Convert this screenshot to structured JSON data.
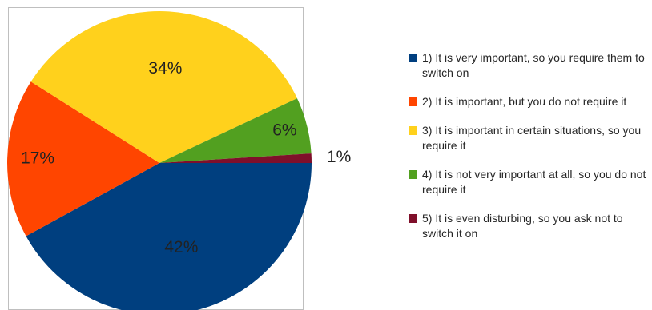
{
  "chart_data": {
    "type": "pie",
    "slices": [
      {
        "label": "1) It is very important, so you require them to switch on",
        "value": 42,
        "value_label": "42%",
        "color": "#003F7F"
      },
      {
        "label": "2) It is important, but you do not require it",
        "value": 17,
        "value_label": "17%",
        "color": "#FF4500"
      },
      {
        "label": "3) It is important in certain situations, so you require it",
        "value": 34,
        "value_label": "34%",
        "color": "#FFD11C"
      },
      {
        "label": "4) It is not very important at all, so you do not require it",
        "value": 6,
        "value_label": "6%",
        "color": "#52A020"
      },
      {
        "label": "5) It is even disturbing, so you ask not to switch it on",
        "value": 1,
        "value_label": "1%",
        "color": "#7F0F2A"
      }
    ],
    "legend_position": "right",
    "start_angle": "three o'clock",
    "direction": "clockwise",
    "border": true
  }
}
